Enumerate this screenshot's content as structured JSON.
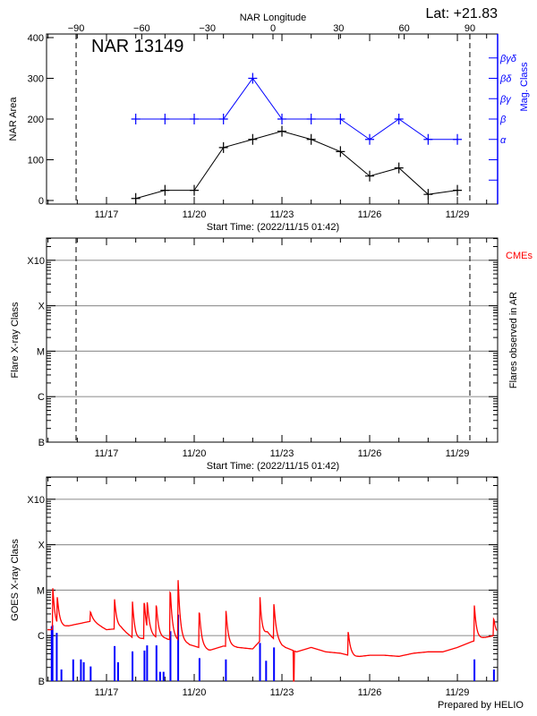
{
  "colors": {
    "area": "#000000",
    "mag": "#0000ff",
    "goes": "#ff0000",
    "flares": "#0000ff",
    "cme": "#ff0000",
    "grid": "#999999"
  },
  "header": {
    "lat_label": "Lat: +21.83",
    "region_label": "NAR 13149"
  },
  "chart_data": [
    {
      "type": "line",
      "title": "NAR 13149",
      "xlabel": "Start Time: (2022/11/15 01:42)",
      "ylabel": "NAR Area",
      "y2label": "Mag. Class",
      "x2label": "NAR Longitude",
      "x_tick_labels": [
        "11/17",
        "11/20",
        "11/23",
        "11/26",
        "11/29"
      ],
      "x2_tick_labels": [
        "-90",
        "-60",
        "-30",
        "0",
        "30",
        "60",
        "90"
      ],
      "y_tick_labels": [
        "0",
        "100",
        "200",
        "300",
        "400"
      ],
      "ylim": [
        0,
        400
      ],
      "y2_tick_labels": [
        "α",
        "β",
        "βγ",
        "βδ",
        "βγδ"
      ],
      "limb_longitudes": [
        -90,
        90
      ],
      "x": [
        "2022-11-18",
        "2022-11-19",
        "2022-11-20",
        "2022-11-21",
        "2022-11-22",
        "2022-11-23",
        "2022-11-24",
        "2022-11-25",
        "2022-11-26",
        "2022-11-27",
        "2022-11-28",
        "2022-11-29"
      ],
      "series": [
        {
          "name": "NAR Area",
          "values": [
            5,
            25,
            25,
            130,
            150,
            170,
            150,
            120,
            60,
            80,
            15,
            25
          ]
        },
        {
          "name": "Mag. Class",
          "values": [
            "β",
            "β",
            "β",
            "β",
            "βδ",
            "β",
            "β",
            "β",
            "α",
            "β",
            "α",
            "α"
          ]
        }
      ]
    },
    {
      "type": "scatter",
      "xlabel": "Start Time: (2022/11/15 01:42)",
      "ylabel": "Flare X-ray Class",
      "y2label": "Flares observed in AR",
      "legend": "CMEs",
      "x_tick_labels": [
        "11/17",
        "11/20",
        "11/23",
        "11/26",
        "11/29"
      ],
      "y_tick_labels": [
        "B",
        "C",
        "M",
        "X",
        "X10"
      ],
      "grid": true,
      "points": []
    },
    {
      "type": "line",
      "xlabel": "",
      "ylabel": "GOES X-ray Class",
      "log_scale": true,
      "x_tick_labels": [
        "11/17",
        "11/20",
        "11/23",
        "11/26",
        "11/29"
      ],
      "y_tick_labels": [
        "B",
        "C",
        "M",
        "X",
        "X10"
      ],
      "grid": true,
      "baseline": {
        "x": [
          "11/15 02:00",
          "11/16 00:00",
          "11/16 12:00",
          "11/17 00:00",
          "11/17 12:00",
          "11/18 00:00",
          "11/18 12:00",
          "11/19 00:00",
          "11/19 12:00",
          "11/20 00:00",
          "11/20 12:00",
          "11/21 00:00",
          "11/21 12:00",
          "11/22 00:00",
          "11/22 12:00",
          "11/23 00:00",
          "11/23 12:00",
          "11/24 00:00",
          "11/24 12:00",
          "11/25 00:00",
          "11/25 12:00",
          "11/26 00:00",
          "11/26 12:00",
          "11/27 00:00",
          "11/27 12:00",
          "11/28 00:00",
          "11/28 12:00",
          "11/29 00:00",
          "11/29 12:00",
          "11/30 00:00",
          "11/30 12:00"
        ],
        "flux": [
          1.35e-06,
          1.8e-06,
          2.1e-06,
          1.35e-06,
          1.45e-06,
          7.9e-07,
          9.3e-07,
          8.6e-07,
          7.4e-07,
          5.9e-07,
          4.7e-07,
          5.9e-07,
          5.5e-07,
          5.1e-07,
          1.15e-06,
          5.9e-07,
          4.4e-07,
          5.5e-07,
          4.4e-07,
          4.1e-07,
          3.4e-07,
          3.7e-07,
          3.7e-07,
          3.5e-07,
          4.1e-07,
          4.4e-07,
          4.4e-07,
          5.5e-07,
          7.4e-07,
          9.3e-07,
          1.07e-06
        ]
      },
      "peaks": [
        {
          "t": "11/15 04:00",
          "flux": 1.1e-05
        },
        {
          "t": "11/15 07:40",
          "flux": 7e-06
        },
        {
          "t": "11/16 11:00",
          "flux": 3.3e-06
        },
        {
          "t": "11/17 06:40",
          "flux": 6.3e-06
        },
        {
          "t": "11/17 21:20",
          "flux": 5.6e-06
        },
        {
          "t": "11/18 07:10",
          "flux": 5.2e-06
        },
        {
          "t": "11/18 09:30",
          "flux": 5.4e-06
        },
        {
          "t": "11/18 17:00",
          "flux": 4.6e-06
        },
        {
          "t": "11/19 04:30",
          "flux": 8.9e-06
        },
        {
          "t": "11/19 10:50",
          "flux": 1.66e-05
        },
        {
          "t": "11/20 04:20",
          "flux": 3.2e-06
        },
        {
          "t": "11/21 02:10",
          "flux": 3.5e-06
        },
        {
          "t": "11/22 06:00",
          "flux": 7e-06
        },
        {
          "t": "11/22 17:30",
          "flux": 4.9e-06
        },
        {
          "t": "11/25 06:30",
          "flux": 1.2e-06
        },
        {
          "t": "11/29 14:00",
          "flux": 4.6e-06
        },
        {
          "t": "11/30 06:00",
          "flux": 2.3e-06
        }
      ],
      "data_gap": {
        "t": "11/23 09:40",
        "flux": 1e-07
      },
      "flare_events": [
        {
          "t": "11/15 03:00",
          "flux": 1.6e-06
        },
        {
          "t": "11/15 03:40",
          "flux": 1.7e-06
        },
        {
          "t": "11/15 07:10",
          "flux": 1.15e-06
        },
        {
          "t": "11/15 11:00",
          "flux": 1.8e-07
        },
        {
          "t": "11/15 20:40",
          "flux": 3e-07
        },
        {
          "t": "11/16 03:00",
          "flux": 3e-07
        },
        {
          "t": "11/16 05:20",
          "flux": 2.6e-07
        },
        {
          "t": "11/16 11:00",
          "flux": 2.1e-07
        },
        {
          "t": "11/17 06:40",
          "flux": 5.9e-07
        },
        {
          "t": "11/17 09:30",
          "flux": 2.6e-07
        },
        {
          "t": "11/17 21:20",
          "flux": 4.5e-07
        },
        {
          "t": "11/18 07:10",
          "flux": 4.7e-07
        },
        {
          "t": "11/18 09:20",
          "flux": 6.1e-07
        },
        {
          "t": "11/18 17:00",
          "flux": 6.1e-07
        },
        {
          "t": "11/18 20:00",
          "flux": 1.6e-07
        },
        {
          "t": "11/18 22:50",
          "flux": 1.6e-07
        },
        {
          "t": "11/19 04:30",
          "flux": 1.25e-06
        },
        {
          "t": "11/19 10:50",
          "flux": 2.9e-06
        },
        {
          "t": "11/20 04:20",
          "flux": 3.2e-07
        },
        {
          "t": "11/21 02:00",
          "flux": 3e-07
        },
        {
          "t": "11/22 06:00",
          "flux": 6.9e-07
        },
        {
          "t": "11/22 11:00",
          "flux": 2.8e-07
        },
        {
          "t": "11/22 17:30",
          "flux": 5.5e-07
        },
        {
          "t": "11/29 14:00",
          "flux": 3e-07
        },
        {
          "t": "11/30 06:00",
          "flux": 1.8e-07
        }
      ]
    }
  ],
  "footer": {
    "credit": "Prepared by HELIO"
  }
}
